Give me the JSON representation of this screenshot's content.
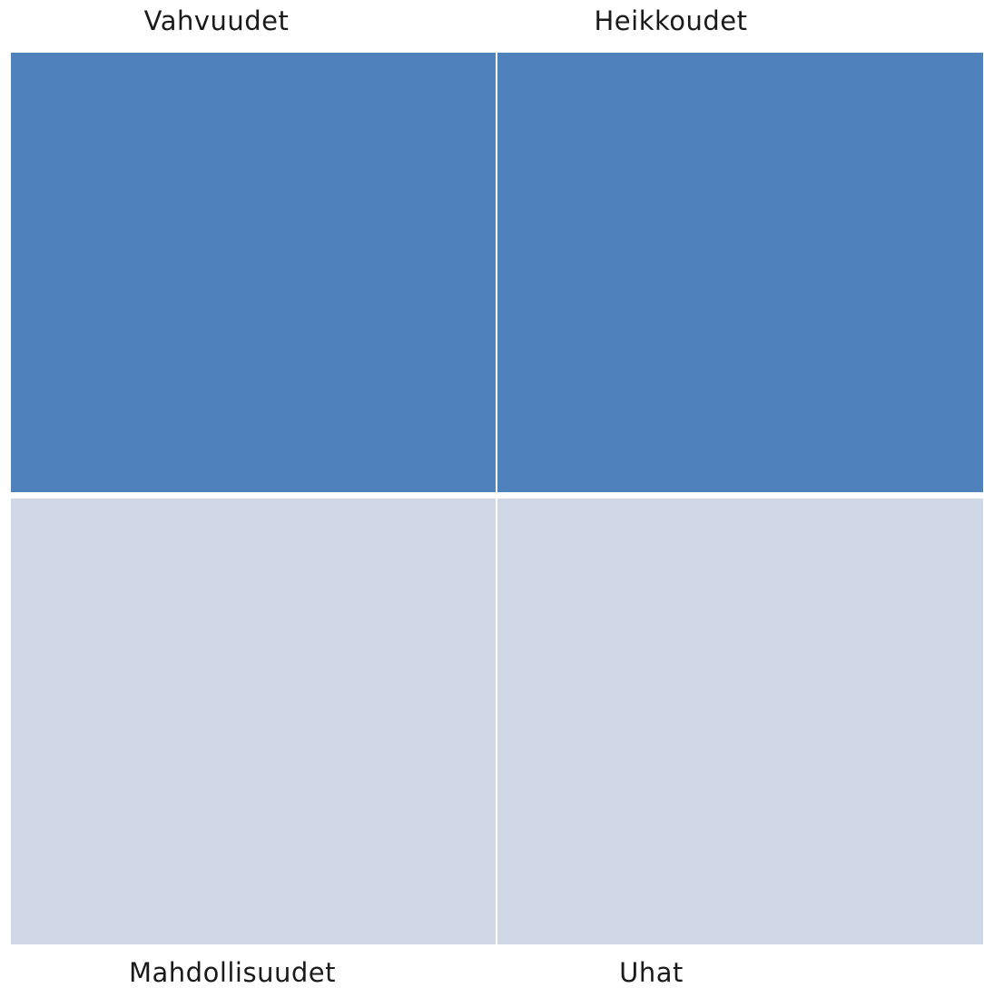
{
  "swot": {
    "strengths": {
      "label": "Vahvuudet",
      "color": "#4F81BD"
    },
    "weaknesses": {
      "label": "Heikkoudet",
      "color": "#4F81BD"
    },
    "opportunities": {
      "label": "Mahdollisuudet",
      "color": "#D0D8E8"
    },
    "threats": {
      "label": "Uhat",
      "color": "#D0D8E8"
    }
  }
}
